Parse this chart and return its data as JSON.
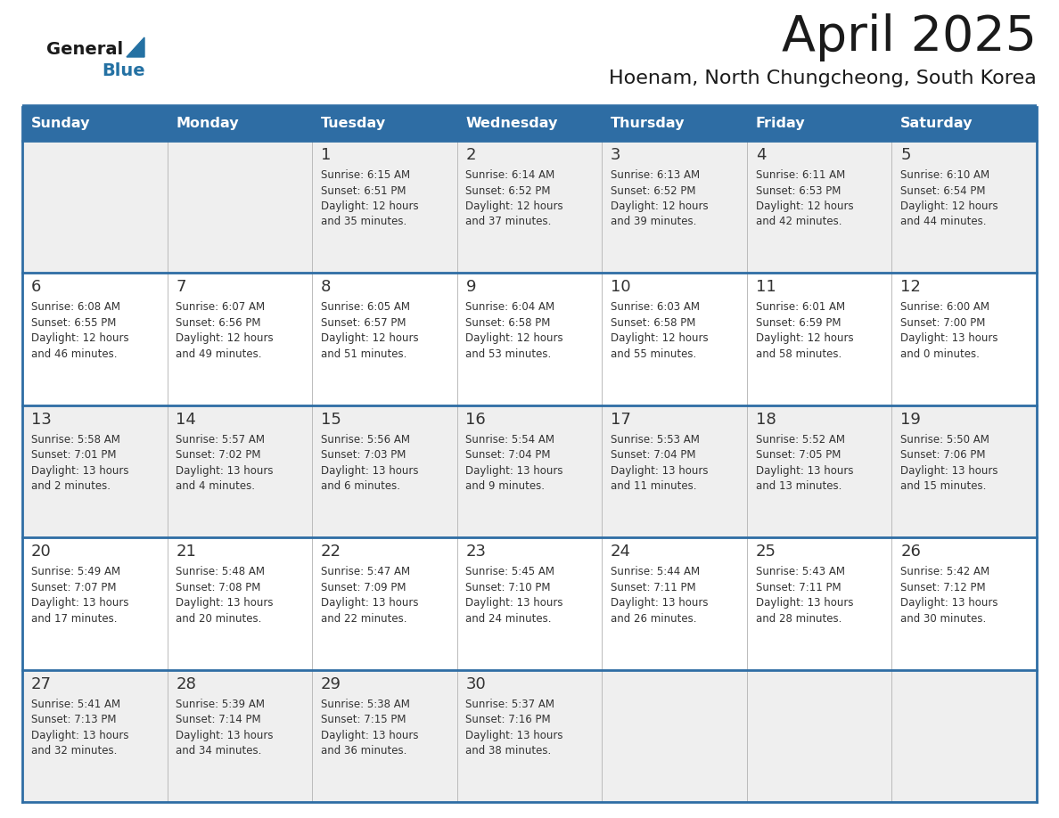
{
  "title": "April 2025",
  "subtitle": "Hoenam, North Chungcheong, South Korea",
  "days_of_week": [
    "Sunday",
    "Monday",
    "Tuesday",
    "Wednesday",
    "Thursday",
    "Friday",
    "Saturday"
  ],
  "header_bg": "#2E6DA4",
  "header_text": "#FFFFFF",
  "cell_bg_odd": "#EFEFEF",
  "cell_bg_even": "#FFFFFF",
  "divider_color": "#2E6DA4",
  "text_color": "#333333",
  "title_color": "#1a1a1a",
  "logo_general_color": "#1a1a1a",
  "logo_blue_color": "#2471A3",
  "calendar": [
    [
      {
        "day": null,
        "info": ""
      },
      {
        "day": null,
        "info": ""
      },
      {
        "day": 1,
        "info": "Sunrise: 6:15 AM\nSunset: 6:51 PM\nDaylight: 12 hours\nand 35 minutes."
      },
      {
        "day": 2,
        "info": "Sunrise: 6:14 AM\nSunset: 6:52 PM\nDaylight: 12 hours\nand 37 minutes."
      },
      {
        "day": 3,
        "info": "Sunrise: 6:13 AM\nSunset: 6:52 PM\nDaylight: 12 hours\nand 39 minutes."
      },
      {
        "day": 4,
        "info": "Sunrise: 6:11 AM\nSunset: 6:53 PM\nDaylight: 12 hours\nand 42 minutes."
      },
      {
        "day": 5,
        "info": "Sunrise: 6:10 AM\nSunset: 6:54 PM\nDaylight: 12 hours\nand 44 minutes."
      }
    ],
    [
      {
        "day": 6,
        "info": "Sunrise: 6:08 AM\nSunset: 6:55 PM\nDaylight: 12 hours\nand 46 minutes."
      },
      {
        "day": 7,
        "info": "Sunrise: 6:07 AM\nSunset: 6:56 PM\nDaylight: 12 hours\nand 49 minutes."
      },
      {
        "day": 8,
        "info": "Sunrise: 6:05 AM\nSunset: 6:57 PM\nDaylight: 12 hours\nand 51 minutes."
      },
      {
        "day": 9,
        "info": "Sunrise: 6:04 AM\nSunset: 6:58 PM\nDaylight: 12 hours\nand 53 minutes."
      },
      {
        "day": 10,
        "info": "Sunrise: 6:03 AM\nSunset: 6:58 PM\nDaylight: 12 hours\nand 55 minutes."
      },
      {
        "day": 11,
        "info": "Sunrise: 6:01 AM\nSunset: 6:59 PM\nDaylight: 12 hours\nand 58 minutes."
      },
      {
        "day": 12,
        "info": "Sunrise: 6:00 AM\nSunset: 7:00 PM\nDaylight: 13 hours\nand 0 minutes."
      }
    ],
    [
      {
        "day": 13,
        "info": "Sunrise: 5:58 AM\nSunset: 7:01 PM\nDaylight: 13 hours\nand 2 minutes."
      },
      {
        "day": 14,
        "info": "Sunrise: 5:57 AM\nSunset: 7:02 PM\nDaylight: 13 hours\nand 4 minutes."
      },
      {
        "day": 15,
        "info": "Sunrise: 5:56 AM\nSunset: 7:03 PM\nDaylight: 13 hours\nand 6 minutes."
      },
      {
        "day": 16,
        "info": "Sunrise: 5:54 AM\nSunset: 7:04 PM\nDaylight: 13 hours\nand 9 minutes."
      },
      {
        "day": 17,
        "info": "Sunrise: 5:53 AM\nSunset: 7:04 PM\nDaylight: 13 hours\nand 11 minutes."
      },
      {
        "day": 18,
        "info": "Sunrise: 5:52 AM\nSunset: 7:05 PM\nDaylight: 13 hours\nand 13 minutes."
      },
      {
        "day": 19,
        "info": "Sunrise: 5:50 AM\nSunset: 7:06 PM\nDaylight: 13 hours\nand 15 minutes."
      }
    ],
    [
      {
        "day": 20,
        "info": "Sunrise: 5:49 AM\nSunset: 7:07 PM\nDaylight: 13 hours\nand 17 minutes."
      },
      {
        "day": 21,
        "info": "Sunrise: 5:48 AM\nSunset: 7:08 PM\nDaylight: 13 hours\nand 20 minutes."
      },
      {
        "day": 22,
        "info": "Sunrise: 5:47 AM\nSunset: 7:09 PM\nDaylight: 13 hours\nand 22 minutes."
      },
      {
        "day": 23,
        "info": "Sunrise: 5:45 AM\nSunset: 7:10 PM\nDaylight: 13 hours\nand 24 minutes."
      },
      {
        "day": 24,
        "info": "Sunrise: 5:44 AM\nSunset: 7:11 PM\nDaylight: 13 hours\nand 26 minutes."
      },
      {
        "day": 25,
        "info": "Sunrise: 5:43 AM\nSunset: 7:11 PM\nDaylight: 13 hours\nand 28 minutes."
      },
      {
        "day": 26,
        "info": "Sunrise: 5:42 AM\nSunset: 7:12 PM\nDaylight: 13 hours\nand 30 minutes."
      }
    ],
    [
      {
        "day": 27,
        "info": "Sunrise: 5:41 AM\nSunset: 7:13 PM\nDaylight: 13 hours\nand 32 minutes."
      },
      {
        "day": 28,
        "info": "Sunrise: 5:39 AM\nSunset: 7:14 PM\nDaylight: 13 hours\nand 34 minutes."
      },
      {
        "day": 29,
        "info": "Sunrise: 5:38 AM\nSunset: 7:15 PM\nDaylight: 13 hours\nand 36 minutes."
      },
      {
        "day": 30,
        "info": "Sunrise: 5:37 AM\nSunset: 7:16 PM\nDaylight: 13 hours\nand 38 minutes."
      },
      {
        "day": null,
        "info": ""
      },
      {
        "day": null,
        "info": ""
      },
      {
        "day": null,
        "info": ""
      }
    ]
  ]
}
